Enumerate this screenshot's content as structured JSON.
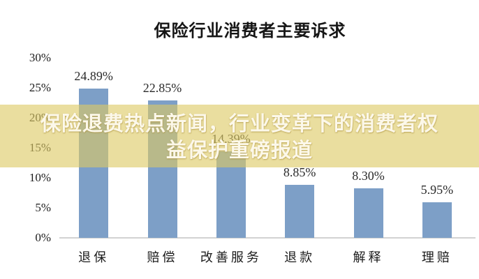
{
  "title": "保险行业消费者主要诉求",
  "overlay": {
    "line1": "保险退费热点新闻，行业变革下的消费者权",
    "line2": "益保护重磅报道",
    "bg_color": "rgba(221, 201, 100, 0.62)",
    "text_color": "#fcf8ea"
  },
  "chart_data": {
    "type": "bar",
    "title": "保险行业消费者主要诉求",
    "categories": [
      "退保",
      "赔偿",
      "改善服务",
      "退款",
      "解释",
      "理赔"
    ],
    "values": [
      24.89,
      22.85,
      14.39,
      8.85,
      8.3,
      5.95
    ],
    "value_labels": [
      "24.89%",
      "22.85%",
      "14.39%",
      "8.85%",
      "8.30%",
      "5.95%"
    ],
    "xlabel": "",
    "ylabel": "",
    "ylim": [
      0,
      30
    ],
    "ytick_step": 5,
    "ytick_values": [
      0,
      5,
      10,
      15,
      20,
      25,
      30
    ],
    "ytick_labels": [
      "0%",
      "5%",
      "10%",
      "15%",
      "20%",
      "25%",
      "30%"
    ],
    "bar_color": "#7d9fc7",
    "axis_line_color": "#d2d2d2",
    "grid": false,
    "legend_position": "none"
  }
}
